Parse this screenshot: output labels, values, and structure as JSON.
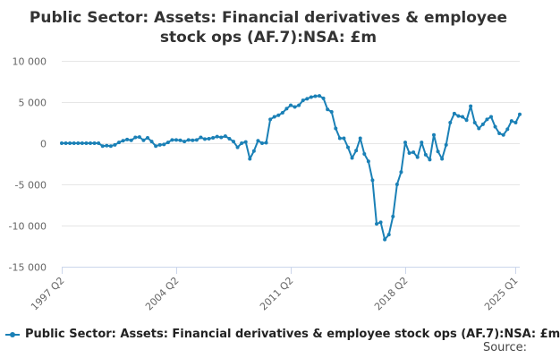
{
  "title_lines": [
    "Public Sector: Assets: Financial derivatives & employee",
    "stock ops (AF.7):NSA: £m"
  ],
  "source_label": "Source:",
  "colors": {
    "series": "#1a80b6",
    "grid": "#e6e6e6",
    "axis": "#ccd6eb",
    "text": "#333333"
  },
  "chart_data": {
    "type": "line",
    "title": "Public Sector: Assets: Financial derivatives & employee stock ops (AF.7):NSA: £m",
    "xlabel": "",
    "ylabel": "",
    "ylim": [
      -15000,
      10000
    ],
    "yticks": [
      10000,
      5000,
      0,
      -5000,
      -10000,
      -15000
    ],
    "ytick_labels": [
      "10 000",
      "5 000",
      "0",
      "-5 000",
      "-10 000",
      "-15 000"
    ],
    "xtick_labels": [
      "1997 Q2",
      "2004 Q2",
      "2011 Q2",
      "2018 Q2",
      "2025 Q1"
    ],
    "xtick_positions": [
      0,
      28,
      56,
      84,
      111
    ],
    "grid": true,
    "legend": "bottom",
    "series": [
      {
        "name": "Public Sector: Assets: Financial derivatives & employee stock ops (AF.7):NSA: £m",
        "start": "1997 Q2",
        "values": [
          0,
          0,
          0,
          0,
          0,
          0,
          0,
          0,
          0,
          0,
          -350,
          -300,
          -350,
          -200,
          100,
          300,
          450,
          350,
          700,
          750,
          350,
          650,
          200,
          -350,
          -200,
          -150,
          100,
          400,
          400,
          350,
          200,
          400,
          350,
          400,
          700,
          500,
          550,
          650,
          800,
          700,
          850,
          550,
          200,
          -500,
          0,
          150,
          -1900,
          -950,
          300,
          0,
          50,
          2900,
          3200,
          3400,
          3700,
          4200,
          4600,
          4400,
          4600,
          5200,
          5400,
          5600,
          5700,
          5750,
          5450,
          4100,
          3800,
          1800,
          600,
          600,
          -500,
          -1800,
          -900,
          600,
          -1300,
          -2200,
          -4500,
          -9800,
          -9600,
          -11700,
          -11100,
          -8900,
          -5000,
          -3500,
          100,
          -1200,
          -1100,
          -1700,
          100,
          -1400,
          -2000,
          1000,
          -1000,
          -1900,
          -200,
          2500,
          3600,
          3300,
          3200,
          2800,
          4500,
          2500,
          1800,
          2300,
          2900,
          3200,
          2000,
          1200,
          1000,
          1700,
          2700,
          2500,
          3500
        ]
      }
    ]
  }
}
